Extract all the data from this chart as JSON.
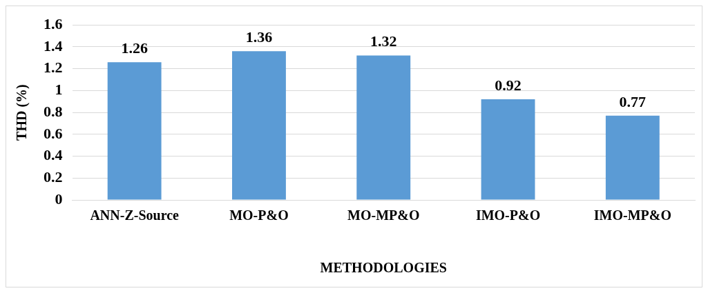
{
  "chart_data": {
    "type": "bar",
    "xlabel": "METHODOLOGIES",
    "ylabel": "THD (%)",
    "categories": [
      "ANN-Z-Source",
      "MO-P&O",
      "MO-MP&O",
      "IMO-P&O",
      "IMO-MP&O"
    ],
    "values": [
      1.26,
      1.36,
      1.32,
      0.92,
      0.77
    ],
    "color": "#5b9bd5",
    "ylim": [
      0,
      1.6
    ],
    "yticks": [
      0,
      0.2,
      0.4,
      0.6,
      0.8,
      1,
      1.2,
      1.4,
      1.6
    ],
    "grid": "y",
    "data_labels": true,
    "legend": false
  }
}
